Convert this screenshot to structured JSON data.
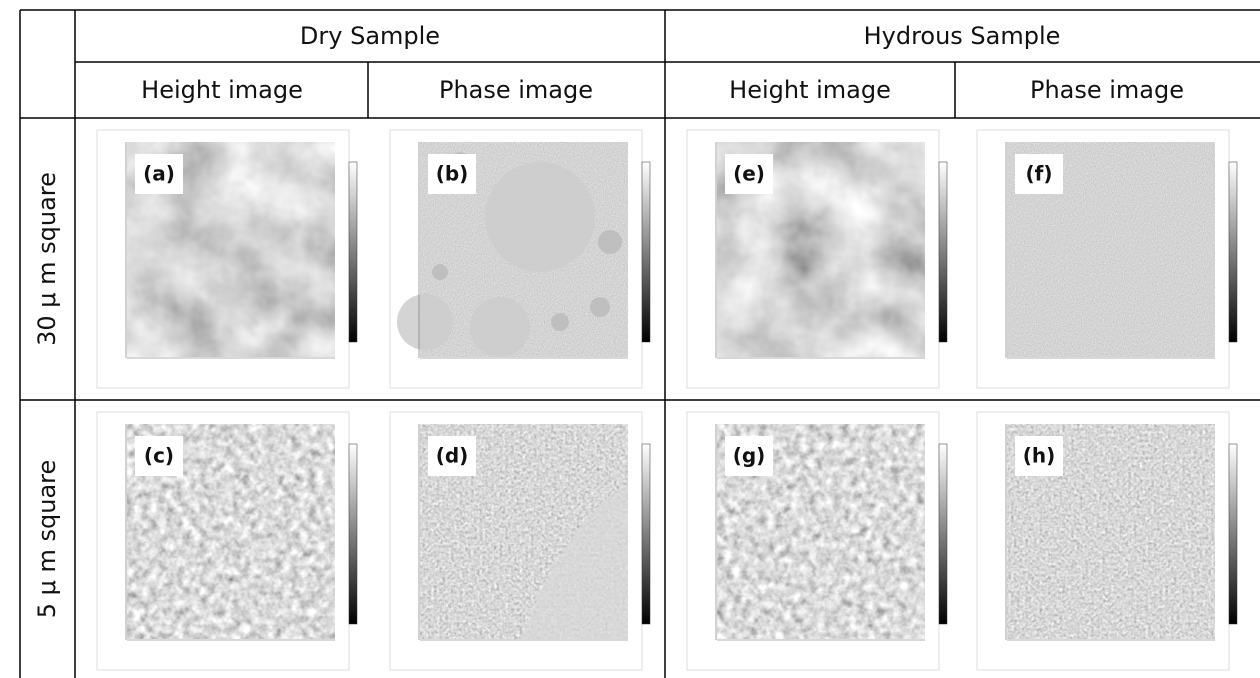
{
  "header": {
    "groups": [
      "Dry Sample",
      "Hydrous Sample"
    ],
    "columns": [
      "Height image",
      "Phase image",
      "Height image",
      "Phase image"
    ]
  },
  "rows": [
    {
      "label": "30 μ m square",
      "panels": [
        "(a)",
        "(b)",
        "(e)",
        "(f)"
      ]
    },
    {
      "label": "5 μ m square",
      "panels": [
        "(c)",
        "(d)",
        "(g)",
        "(h)"
      ]
    }
  ]
}
